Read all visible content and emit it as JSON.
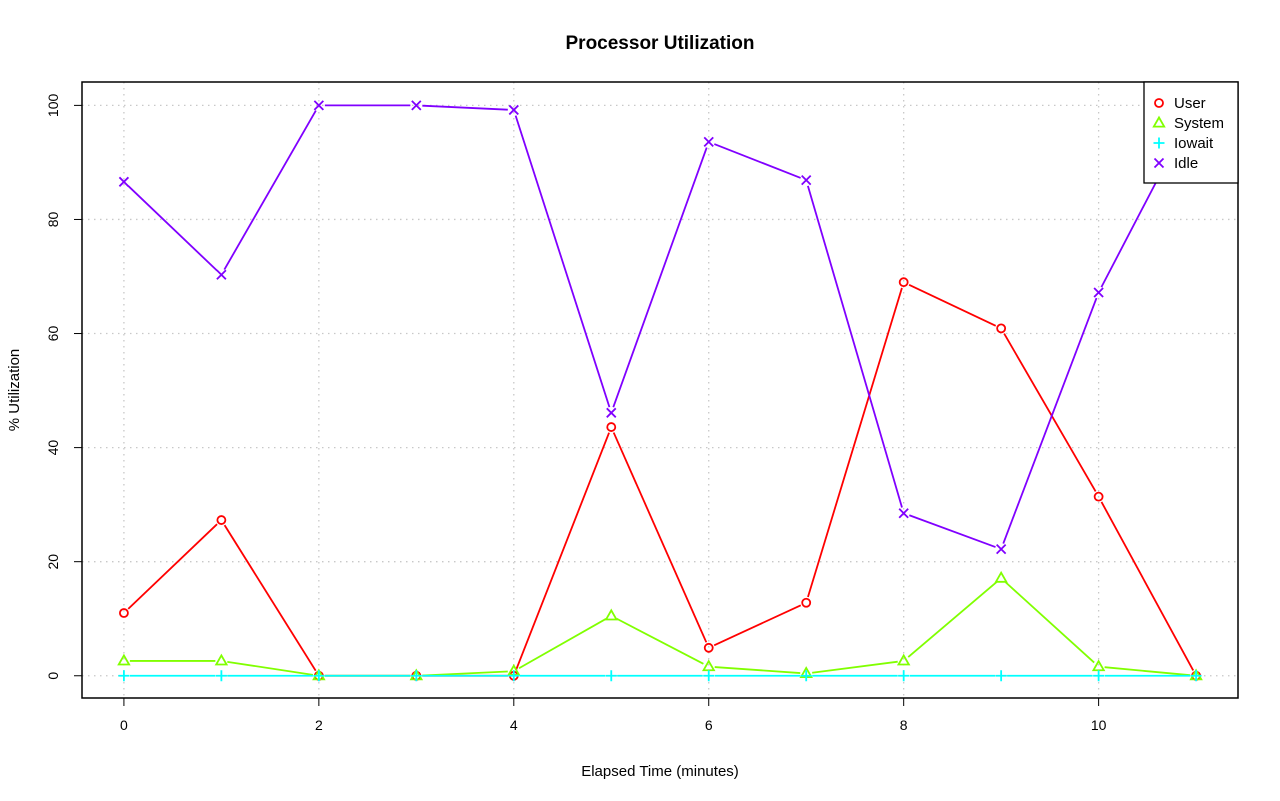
{
  "chart_data": {
    "type": "line",
    "title": "Processor Utilization",
    "xlabel": "Elapsed Time (minutes)",
    "ylabel": "% Utilization",
    "x": [
      0,
      1,
      2,
      3,
      4,
      5,
      6,
      7,
      8,
      9,
      10,
      11
    ],
    "xlim": [
      -0.43,
      11.43
    ],
    "ylim": [
      -3.9,
      104.1
    ],
    "xticks": [
      0,
      2,
      4,
      6,
      8,
      10
    ],
    "yticks": [
      0,
      20,
      40,
      60,
      80,
      100
    ],
    "grid": true,
    "legend_position": "top-right",
    "series": [
      {
        "name": "User",
        "color": "#ff0000",
        "marker": "circle",
        "values": [
          11,
          27.3,
          0,
          0,
          0,
          43.6,
          4.9,
          12.8,
          69,
          60.9,
          31.4,
          0
        ]
      },
      {
        "name": "System",
        "color": "#80ff00",
        "marker": "triangle",
        "values": [
          2.6,
          2.6,
          0,
          0,
          0.8,
          10.5,
          1.6,
          0.4,
          2.6,
          17.1,
          1.6,
          0
        ]
      },
      {
        "name": "Iowait",
        "color": "#00ffff",
        "marker": "plus",
        "values": [
          0,
          0,
          0,
          0,
          0,
          0,
          0,
          0,
          0,
          0,
          0,
          0
        ]
      },
      {
        "name": "Idle",
        "color": "#8000ff",
        "marker": "x",
        "values": [
          86.6,
          70.3,
          100,
          100,
          99.2,
          46.1,
          93.6,
          86.9,
          28.5,
          22.2,
          67.2,
          100
        ]
      }
    ]
  }
}
